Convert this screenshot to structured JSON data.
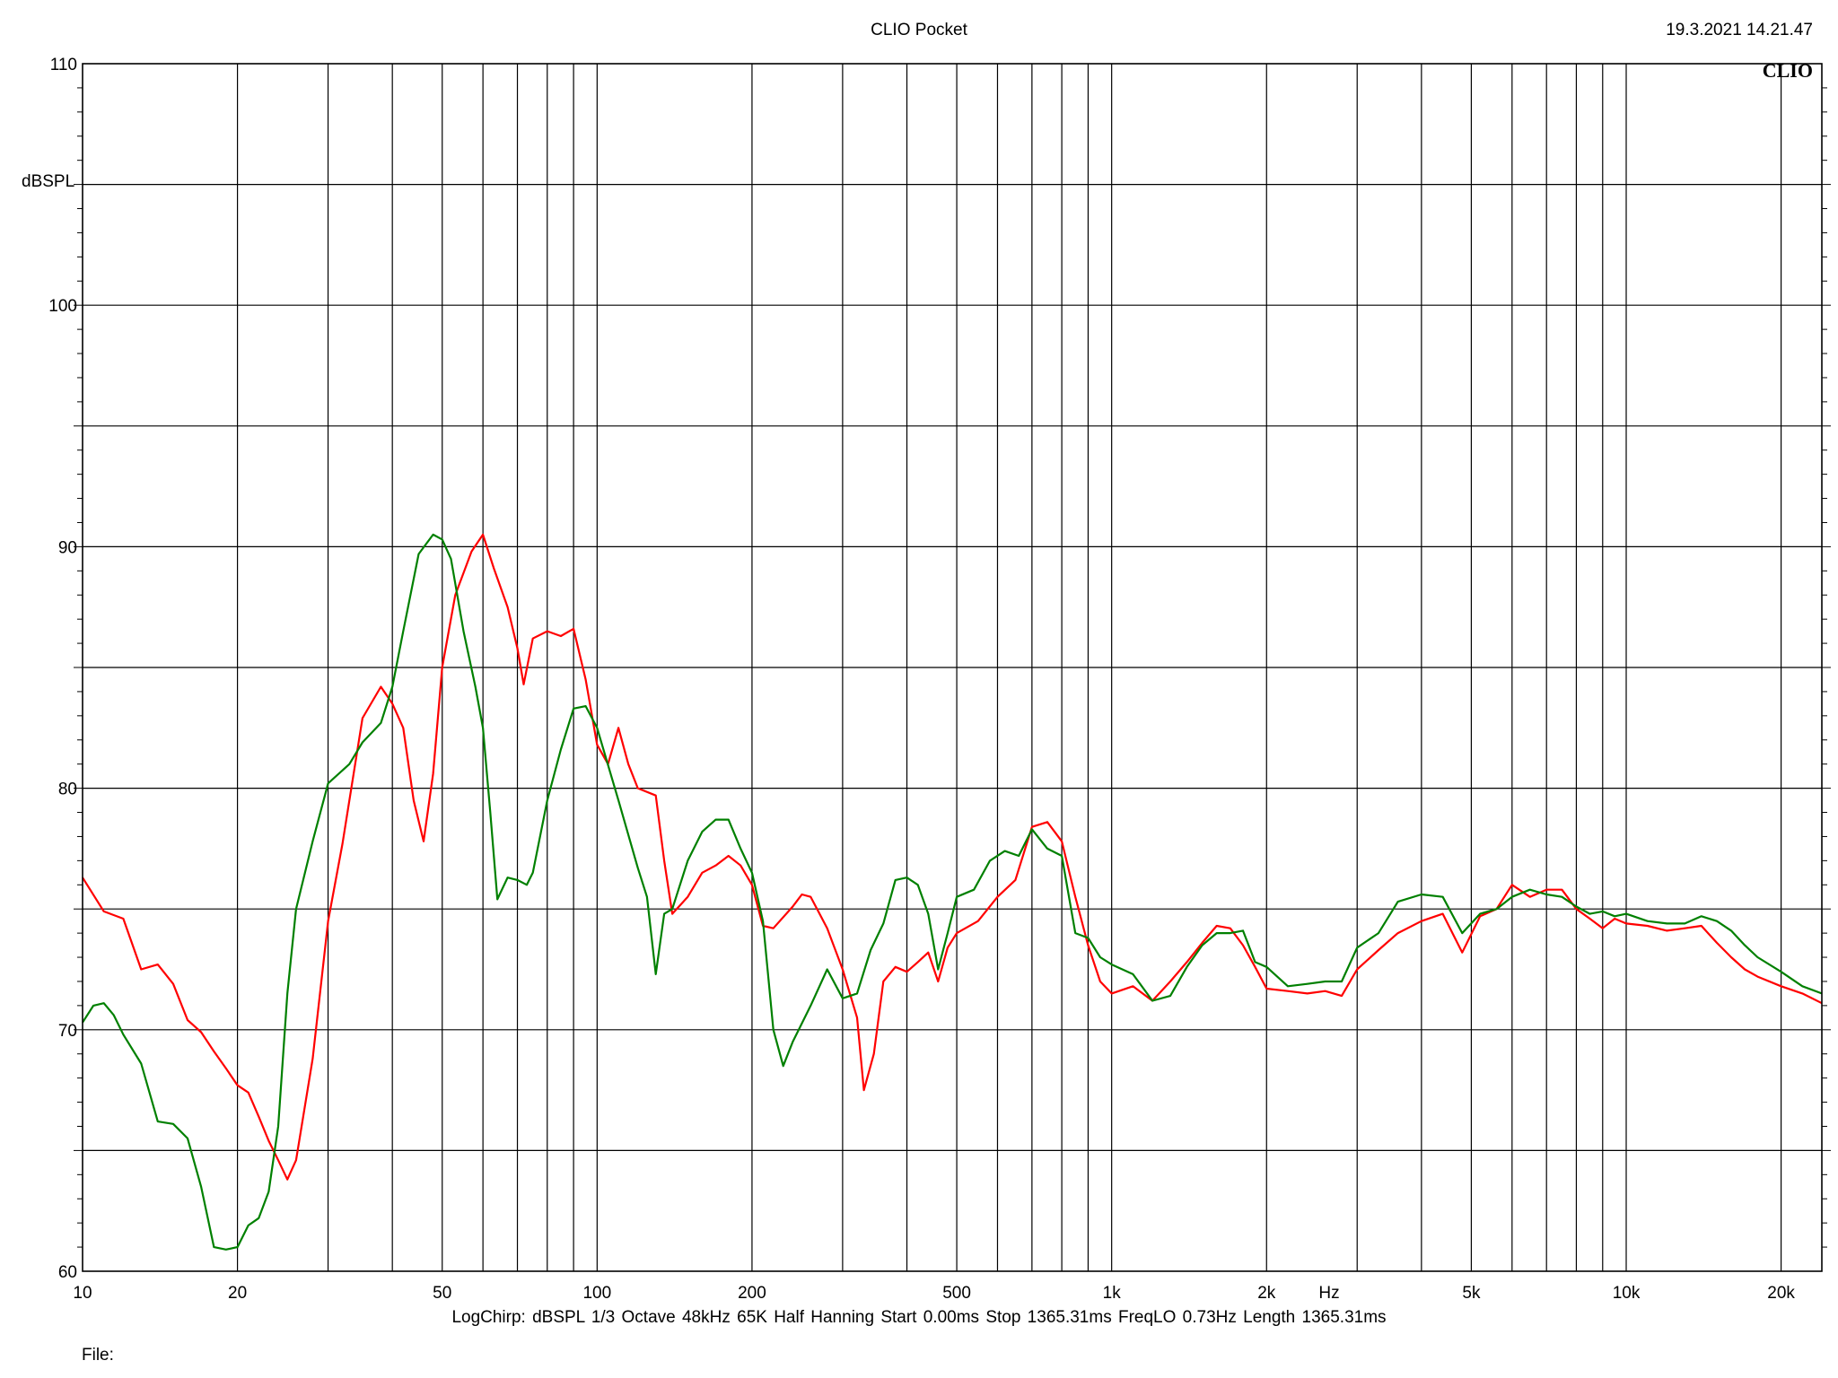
{
  "header": {
    "app_title": "CLIO Pocket",
    "timestamp": "19.3.2021 14.21.47",
    "logo_text": "CLIO"
  },
  "footer": {
    "params": "LogChirp:  dBSPL   1/3 Octave   48kHz   65K   Half Hanning   Start 0.00ms    Stop 1365.31ms    FreqLO 0.73Hz    Length 1365.31ms",
    "file_label": "File:"
  },
  "chart_data": {
    "type": "line",
    "title": "",
    "xlabel": "Hz",
    "ylabel": "dBSPL",
    "x_scale": "log",
    "xlim": [
      10,
      24000
    ],
    "ylim": [
      60,
      110
    ],
    "grid": true,
    "x_tick_labels": [
      {
        "value": 10,
        "label": "10"
      },
      {
        "value": 20,
        "label": "20"
      },
      {
        "value": 50,
        "label": "50"
      },
      {
        "value": 100,
        "label": "100"
      },
      {
        "value": 200,
        "label": "200"
      },
      {
        "value": 500,
        "label": "500"
      },
      {
        "value": 1000,
        "label": "1k"
      },
      {
        "value": 2000,
        "label": "2k"
      },
      {
        "value": 5000,
        "label": "5k"
      },
      {
        "value": 10000,
        "label": "10k"
      },
      {
        "value": 20000,
        "label": "20k"
      }
    ],
    "y_tick_labels": [
      {
        "value": 110,
        "label": "110"
      },
      {
        "value": 100,
        "label": "100"
      },
      {
        "value": 90,
        "label": "90"
      },
      {
        "value": 80,
        "label": "80"
      },
      {
        "value": 70,
        "label": "70"
      },
      {
        "value": 60,
        "label": "60"
      }
    ],
    "series": [
      {
        "color": "#ff0000",
        "points": [
          [
            10,
            76.3
          ],
          [
            11,
            74.9
          ],
          [
            12,
            74.6
          ],
          [
            13,
            72.5
          ],
          [
            14,
            72.7
          ],
          [
            15,
            71.9
          ],
          [
            16,
            70.4
          ],
          [
            17,
            69.9
          ],
          [
            18,
            69.1
          ],
          [
            19,
            68.4
          ],
          [
            20,
            67.7
          ],
          [
            21,
            67.4
          ],
          [
            22,
            66.4
          ],
          [
            23,
            65.4
          ],
          [
            24,
            64.6
          ],
          [
            25,
            63.8
          ],
          [
            26,
            64.6
          ],
          [
            28,
            68.8
          ],
          [
            30,
            74.5
          ],
          [
            32,
            77.7
          ],
          [
            35,
            82.9
          ],
          [
            38,
            84.2
          ],
          [
            40,
            83.5
          ],
          [
            42,
            82.5
          ],
          [
            44,
            79.5
          ],
          [
            46,
            77.8
          ],
          [
            48,
            80.6
          ],
          [
            50,
            85.0
          ],
          [
            53,
            88.0
          ],
          [
            57,
            89.8
          ],
          [
            60,
            90.5
          ],
          [
            63,
            89.1
          ],
          [
            67,
            87.5
          ],
          [
            70,
            85.8
          ],
          [
            72,
            84.3
          ],
          [
            75,
            86.2
          ],
          [
            80,
            86.5
          ],
          [
            85,
            86.3
          ],
          [
            90,
            86.6
          ],
          [
            95,
            84.5
          ],
          [
            100,
            81.8
          ],
          [
            105,
            81.0
          ],
          [
            110,
            82.5
          ],
          [
            115,
            81.0
          ],
          [
            120,
            80.0
          ],
          [
            130,
            79.7
          ],
          [
            135,
            77.0
          ],
          [
            140,
            74.8
          ],
          [
            150,
            75.5
          ],
          [
            160,
            76.5
          ],
          [
            170,
            76.8
          ],
          [
            180,
            77.2
          ],
          [
            190,
            76.8
          ],
          [
            200,
            76.0
          ],
          [
            210,
            74.3
          ],
          [
            220,
            74.2
          ],
          [
            240,
            75.1
          ],
          [
            250,
            75.6
          ],
          [
            260,
            75.5
          ],
          [
            280,
            74.2
          ],
          [
            300,
            72.5
          ],
          [
            320,
            70.5
          ],
          [
            330,
            67.5
          ],
          [
            345,
            69.0
          ],
          [
            360,
            72.0
          ],
          [
            380,
            72.6
          ],
          [
            400,
            72.4
          ],
          [
            420,
            72.8
          ],
          [
            440,
            73.2
          ],
          [
            460,
            72.0
          ],
          [
            480,
            73.4
          ],
          [
            500,
            74.0
          ],
          [
            550,
            74.5
          ],
          [
            600,
            75.5
          ],
          [
            650,
            76.2
          ],
          [
            700,
            78.4
          ],
          [
            750,
            78.6
          ],
          [
            800,
            77.8
          ],
          [
            850,
            75.5
          ],
          [
            900,
            73.5
          ],
          [
            950,
            72.0
          ],
          [
            1000,
            71.5
          ],
          [
            1100,
            71.8
          ],
          [
            1200,
            71.2
          ],
          [
            1300,
            72.0
          ],
          [
            1400,
            72.8
          ],
          [
            1500,
            73.6
          ],
          [
            1600,
            74.3
          ],
          [
            1700,
            74.2
          ],
          [
            1800,
            73.5
          ],
          [
            1900,
            72.6
          ],
          [
            2000,
            71.7
          ],
          [
            2200,
            71.6
          ],
          [
            2400,
            71.5
          ],
          [
            2600,
            71.6
          ],
          [
            2800,
            71.4
          ],
          [
            3000,
            72.5
          ],
          [
            3300,
            73.3
          ],
          [
            3600,
            74.0
          ],
          [
            4000,
            74.5
          ],
          [
            4400,
            74.8
          ],
          [
            4800,
            73.2
          ],
          [
            5200,
            74.7
          ],
          [
            5600,
            75.0
          ],
          [
            6000,
            76.0
          ],
          [
            6500,
            75.5
          ],
          [
            7000,
            75.8
          ],
          [
            7500,
            75.8
          ],
          [
            8000,
            75.0
          ],
          [
            8500,
            74.6
          ],
          [
            9000,
            74.2
          ],
          [
            9500,
            74.6
          ],
          [
            10000,
            74.4
          ],
          [
            11000,
            74.3
          ],
          [
            12000,
            74.1
          ],
          [
            13000,
            74.2
          ],
          [
            14000,
            74.3
          ],
          [
            15000,
            73.6
          ],
          [
            16000,
            73.0
          ],
          [
            17000,
            72.5
          ],
          [
            18000,
            72.2
          ],
          [
            20000,
            71.8
          ],
          [
            22000,
            71.5
          ],
          [
            24000,
            71.1
          ]
        ]
      },
      {
        "color": "#008000",
        "points": [
          [
            10,
            70.3
          ],
          [
            10.5,
            71.0
          ],
          [
            11,
            71.1
          ],
          [
            11.5,
            70.6
          ],
          [
            12,
            69.8
          ],
          [
            13,
            68.6
          ],
          [
            14,
            66.2
          ],
          [
            15,
            66.1
          ],
          [
            16,
            65.5
          ],
          [
            17,
            63.5
          ],
          [
            18,
            61.0
          ],
          [
            19,
            60.9
          ],
          [
            20,
            61.0
          ],
          [
            21,
            61.9
          ],
          [
            22,
            62.2
          ],
          [
            23,
            63.3
          ],
          [
            24,
            66.0
          ],
          [
            25,
            71.5
          ],
          [
            26,
            75.0
          ],
          [
            28,
            77.8
          ],
          [
            30,
            80.2
          ],
          [
            33,
            81.0
          ],
          [
            35,
            81.9
          ],
          [
            38,
            82.7
          ],
          [
            40,
            84.2
          ],
          [
            42,
            86.5
          ],
          [
            45,
            89.7
          ],
          [
            48,
            90.5
          ],
          [
            50,
            90.3
          ],
          [
            52,
            89.5
          ],
          [
            55,
            86.5
          ],
          [
            58,
            84.2
          ],
          [
            60,
            82.5
          ],
          [
            62,
            79.0
          ],
          [
            64,
            75.4
          ],
          [
            67,
            76.3
          ],
          [
            70,
            76.2
          ],
          [
            73,
            76.0
          ],
          [
            75,
            76.5
          ],
          [
            80,
            79.5
          ],
          [
            85,
            81.6
          ],
          [
            90,
            83.3
          ],
          [
            95,
            83.4
          ],
          [
            100,
            82.5
          ],
          [
            110,
            79.5
          ],
          [
            120,
            76.7
          ],
          [
            125,
            75.5
          ],
          [
            130,
            72.3
          ],
          [
            135,
            74.8
          ],
          [
            140,
            75.0
          ],
          [
            150,
            77.0
          ],
          [
            160,
            78.2
          ],
          [
            170,
            78.7
          ],
          [
            180,
            78.7
          ],
          [
            190,
            77.5
          ],
          [
            200,
            76.5
          ],
          [
            210,
            74.5
          ],
          [
            220,
            70.0
          ],
          [
            230,
            68.5
          ],
          [
            240,
            69.5
          ],
          [
            260,
            71.0
          ],
          [
            280,
            72.5
          ],
          [
            300,
            71.3
          ],
          [
            320,
            71.5
          ],
          [
            340,
            73.3
          ],
          [
            360,
            74.4
          ],
          [
            380,
            76.2
          ],
          [
            400,
            76.3
          ],
          [
            420,
            76.0
          ],
          [
            440,
            74.8
          ],
          [
            460,
            72.5
          ],
          [
            480,
            74.0
          ],
          [
            500,
            75.5
          ],
          [
            540,
            75.8
          ],
          [
            580,
            77.0
          ],
          [
            620,
            77.4
          ],
          [
            660,
            77.2
          ],
          [
            700,
            78.3
          ],
          [
            750,
            77.5
          ],
          [
            800,
            77.2
          ],
          [
            850,
            74.0
          ],
          [
            900,
            73.8
          ],
          [
            950,
            73.0
          ],
          [
            1000,
            72.7
          ],
          [
            1100,
            72.3
          ],
          [
            1200,
            71.2
          ],
          [
            1300,
            71.4
          ],
          [
            1400,
            72.6
          ],
          [
            1500,
            73.5
          ],
          [
            1600,
            74.0
          ],
          [
            1700,
            74.0
          ],
          [
            1800,
            74.1
          ],
          [
            1900,
            72.8
          ],
          [
            2000,
            72.6
          ],
          [
            2200,
            71.8
          ],
          [
            2400,
            71.9
          ],
          [
            2600,
            72.0
          ],
          [
            2800,
            72.0
          ],
          [
            3000,
            73.4
          ],
          [
            3300,
            74.0
          ],
          [
            3600,
            75.3
          ],
          [
            4000,
            75.6
          ],
          [
            4400,
            75.5
          ],
          [
            4800,
            74.0
          ],
          [
            5200,
            74.8
          ],
          [
            5600,
            75.0
          ],
          [
            6000,
            75.5
          ],
          [
            6500,
            75.8
          ],
          [
            7000,
            75.6
          ],
          [
            7500,
            75.5
          ],
          [
            8000,
            75.1
          ],
          [
            8500,
            74.8
          ],
          [
            9000,
            74.9
          ],
          [
            9500,
            74.7
          ],
          [
            10000,
            74.8
          ],
          [
            11000,
            74.5
          ],
          [
            12000,
            74.4
          ],
          [
            13000,
            74.4
          ],
          [
            14000,
            74.7
          ],
          [
            15000,
            74.5
          ],
          [
            16000,
            74.1
          ],
          [
            17000,
            73.5
          ],
          [
            18000,
            73.0
          ],
          [
            20000,
            72.4
          ],
          [
            22000,
            71.8
          ],
          [
            24000,
            71.5
          ]
        ]
      }
    ]
  }
}
